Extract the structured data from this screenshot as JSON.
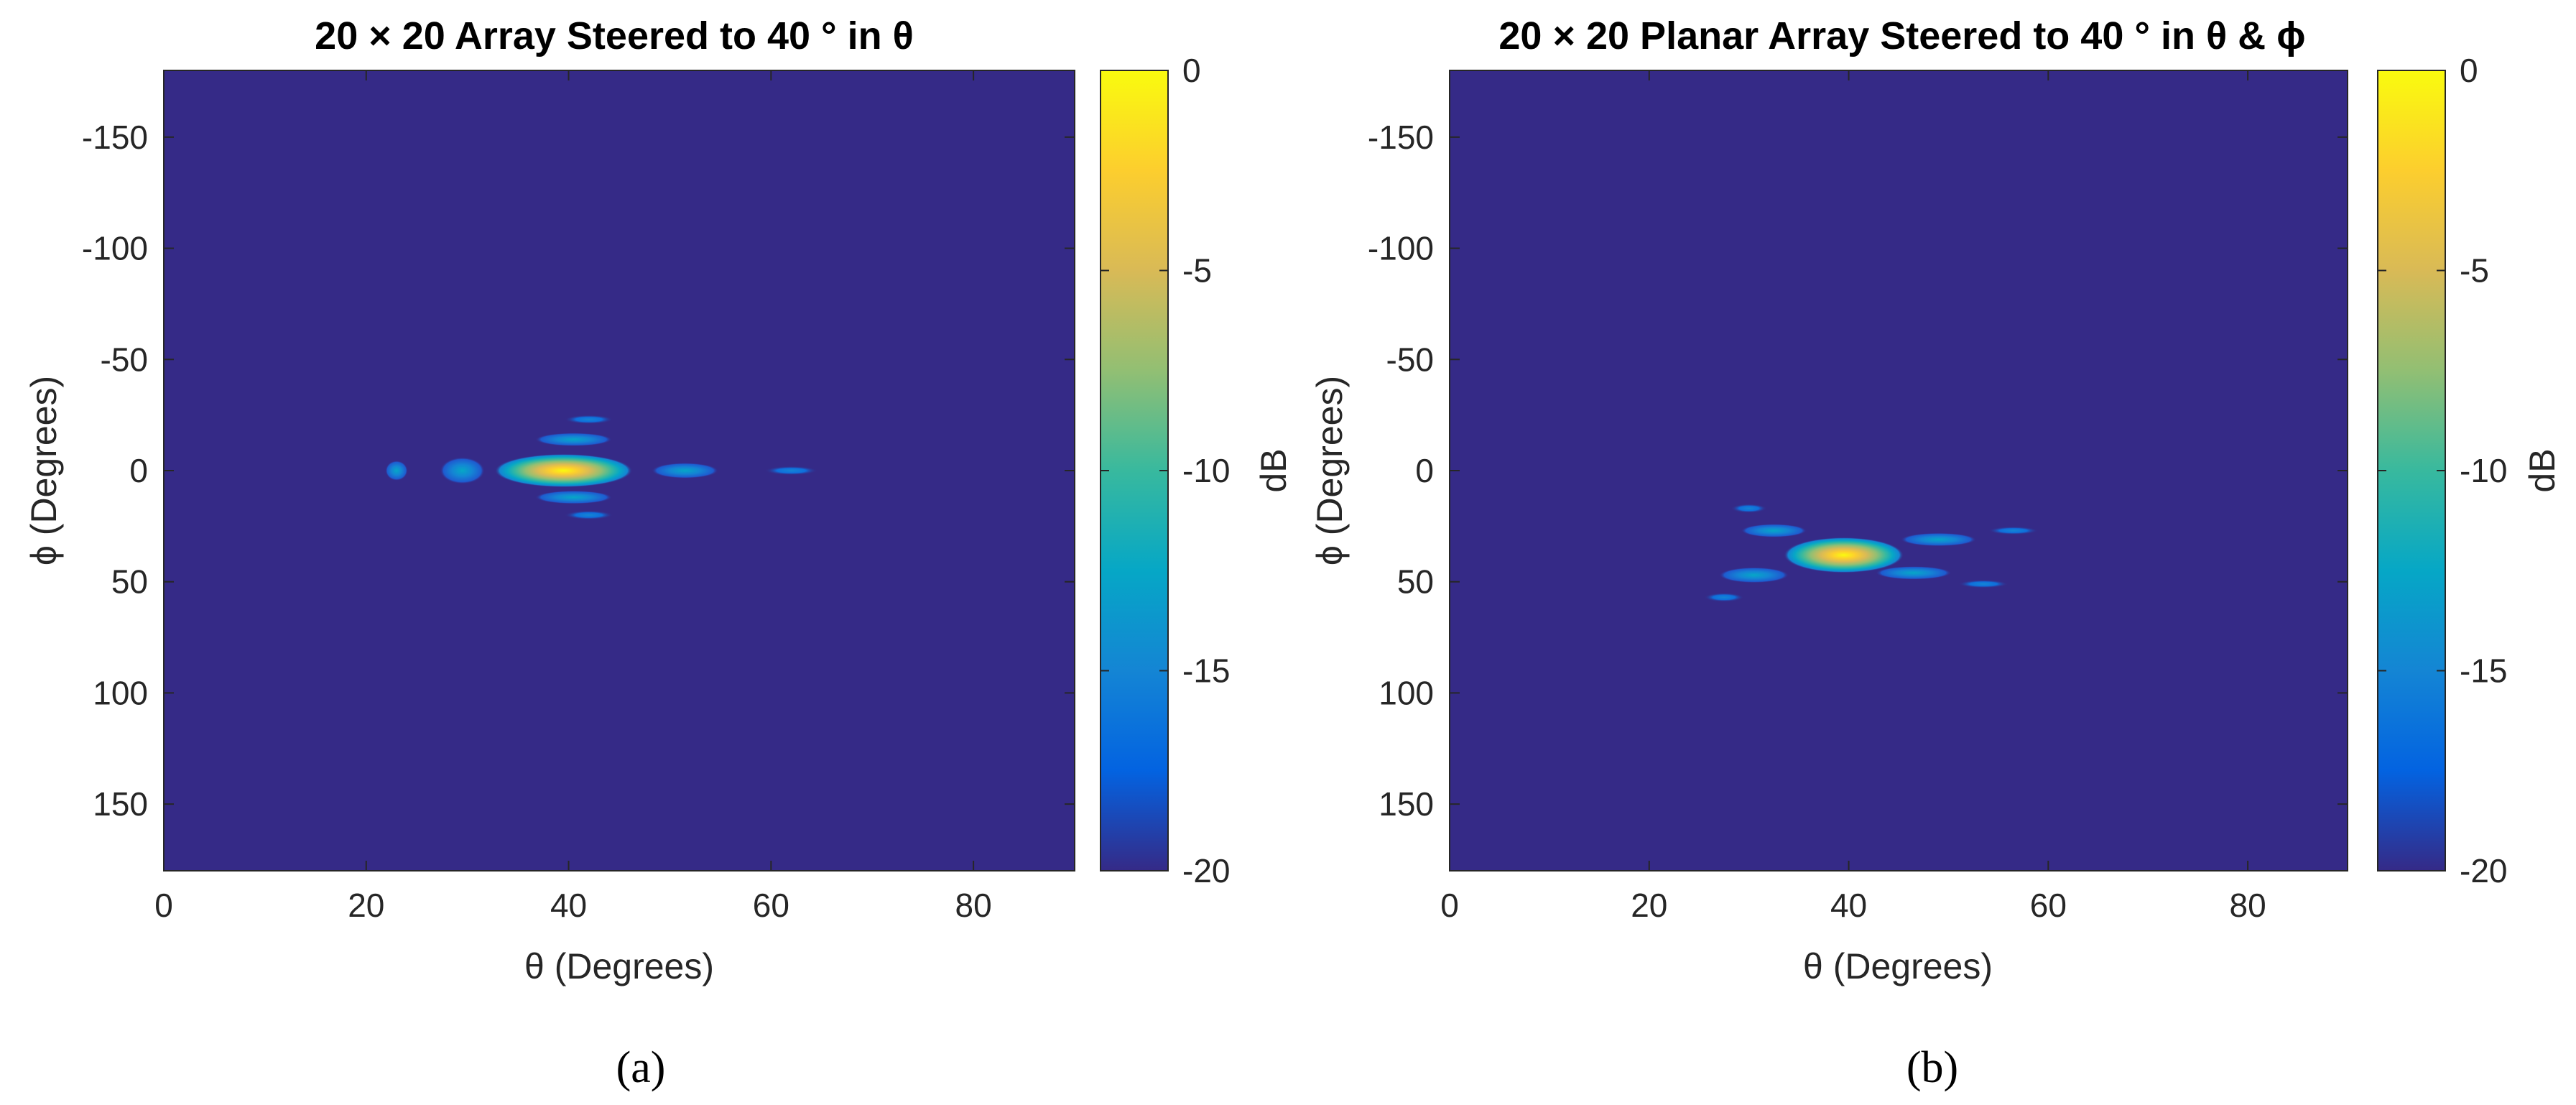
{
  "chart_data": [
    {
      "type": "heatmap",
      "panel_label": "(a)",
      "title": "20 × 20 Array Steered to 40 ° in θ",
      "xlabel": "θ (Degrees)",
      "ylabel": "ϕ (Degrees)",
      "colorbar_label": "dB",
      "xlim": [
        0,
        90
      ],
      "ylim": [
        -180,
        180
      ],
      "y_reversed": true,
      "xticks": [
        "0",
        "20",
        "40",
        "60",
        "80"
      ],
      "yticks": [
        "-150",
        "-100",
        "-50",
        "0",
        "50",
        "100",
        "150"
      ],
      "clim": [
        -20,
        0
      ],
      "cticks": [
        "0",
        "-5",
        "-10",
        "-15",
        "-20"
      ],
      "colormap": "parula",
      "background_db": -20,
      "features": [
        {
          "theta": 39.5,
          "phi": 0,
          "theta_radius": 6.8,
          "phi_radius": 7.5,
          "peak_db": 0
        },
        {
          "theta": 40.5,
          "phi": -14,
          "theta_radius": 3.8,
          "phi_radius": 3,
          "peak_db": -14
        },
        {
          "theta": 40.5,
          "phi": 12,
          "theta_radius": 3.8,
          "phi_radius": 3,
          "peak_db": -14
        },
        {
          "theta": 42,
          "phi": -23,
          "theta_radius": 2.4,
          "phi_radius": 2,
          "peak_db": -16
        },
        {
          "theta": 42,
          "phi": 20,
          "theta_radius": 2.4,
          "phi_radius": 2,
          "peak_db": -16
        },
        {
          "theta": 51.5,
          "phi": 0,
          "theta_radius": 3.3,
          "phi_radius": 3.5,
          "peak_db": -13
        },
        {
          "theta": 62,
          "phi": 0,
          "theta_radius": 2.6,
          "phi_radius": 2,
          "peak_db": -15
        },
        {
          "theta": 29.5,
          "phi": 0,
          "theta_radius": 2.2,
          "phi_radius": 6,
          "peak_db": -13
        },
        {
          "theta": 23,
          "phi": 0,
          "theta_radius": 1.1,
          "phi_radius": 4.5,
          "peak_db": -14
        }
      ]
    },
    {
      "type": "heatmap",
      "panel_label": "(b)",
      "title": "20 × 20 Planar Array Steered to 40 ° in θ & ϕ",
      "xlabel": "θ (Degrees)",
      "ylabel": "ϕ (Degrees)",
      "colorbar_label": "dB",
      "xlim": [
        0,
        90
      ],
      "ylim": [
        -180,
        180
      ],
      "y_reversed": true,
      "xticks": [
        "0",
        "20",
        "40",
        "60",
        "80"
      ],
      "yticks": [
        "-150",
        "-100",
        "-50",
        "0",
        "50",
        "100",
        "150"
      ],
      "clim": [
        -20,
        0
      ],
      "cticks": [
        "0",
        "-5",
        "-10",
        "-15",
        "-20"
      ],
      "colormap": "parula",
      "background_db": -20,
      "features": [
        {
          "theta": 39.5,
          "phi": 38,
          "theta_radius": 6,
          "phi_radius": 8,
          "peak_db": 0
        },
        {
          "theta": 32.5,
          "phi": 27,
          "theta_radius": 3.3,
          "phi_radius": 3,
          "peak_db": -13
        },
        {
          "theta": 49,
          "phi": 31,
          "theta_radius": 3.8,
          "phi_radius": 3,
          "peak_db": -14
        },
        {
          "theta": 30.5,
          "phi": 47,
          "theta_radius": 3.5,
          "phi_radius": 3.5,
          "peak_db": -13
        },
        {
          "theta": 46.5,
          "phi": 46,
          "theta_radius": 3.8,
          "phi_radius": 3,
          "peak_db": -13
        },
        {
          "theta": 30,
          "phi": 17,
          "theta_radius": 1.8,
          "phi_radius": 2,
          "peak_db": -16
        },
        {
          "theta": 56.5,
          "phi": 27,
          "theta_radius": 2.5,
          "phi_radius": 1.8,
          "peak_db": -16
        },
        {
          "theta": 27.5,
          "phi": 57,
          "theta_radius": 2.0,
          "phi_radius": 2,
          "peak_db": -16
        },
        {
          "theta": 53.5,
          "phi": 51,
          "theta_radius": 2.5,
          "phi_radius": 1.8,
          "peak_db": -16
        }
      ]
    }
  ]
}
